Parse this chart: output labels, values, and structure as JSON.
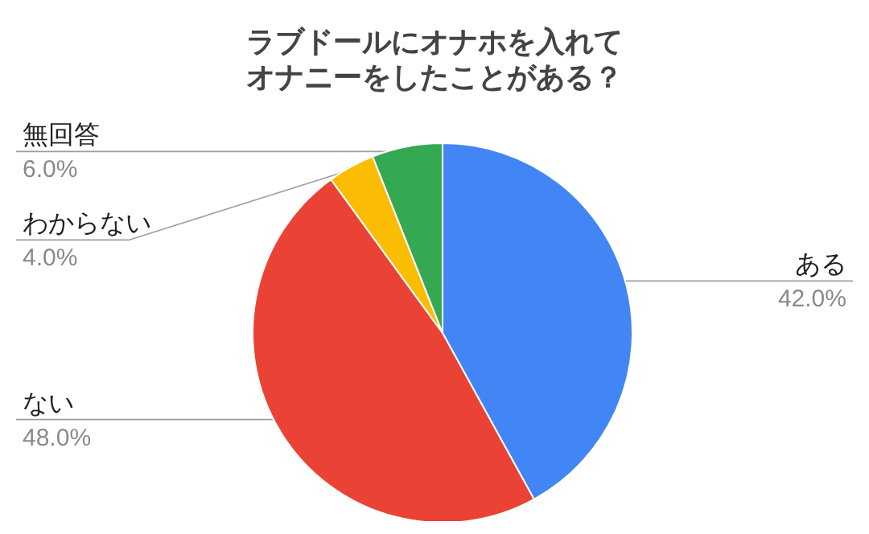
{
  "chart_data": {
    "type": "pie",
    "title": "ラブドールにオナホを入れてオナニーをしたことがある？",
    "categories": [
      "ある",
      "ない",
      "わからない",
      "無回答"
    ],
    "values": [
      42,
      48,
      4,
      6
    ],
    "colors": [
      "#4285f4",
      "#ea4335",
      "#fbbc04",
      "#34a853"
    ],
    "value_labels": [
      "42.0%",
      "48.0%",
      "4.0%",
      "6.0%"
    ]
  }
}
